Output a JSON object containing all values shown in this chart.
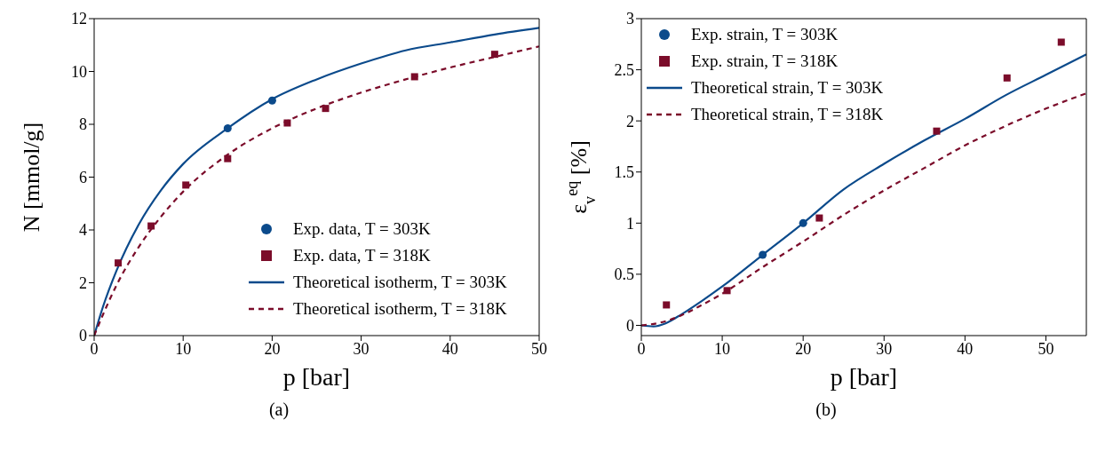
{
  "chart_data": [
    {
      "type": "scatter",
      "xlabel": "p [bar]",
      "ylabel": "N [mmol/g]",
      "xlim": [
        0,
        50
      ],
      "ylim": [
        0,
        12
      ],
      "xticks": [
        0,
        10,
        20,
        30,
        40,
        50
      ],
      "yticks": [
        0,
        2,
        4,
        6,
        8,
        10,
        12
      ],
      "legend": "bottom right",
      "annotations": [
        "(a)"
      ],
      "series": [
        {
          "name": "Exp. data, T = 303K",
          "type": "scatter",
          "marker": "circle",
          "color": "#0b4a8b",
          "x": [
            15,
            20
          ],
          "values": [
            7.85,
            8.9
          ]
        },
        {
          "name": "Exp. data, T = 318K",
          "type": "scatter",
          "marker": "square",
          "color": "#7b0c2a",
          "x": [
            2.7,
            6.4,
            10.3,
            15,
            21.7,
            26,
            36,
            45
          ],
          "values": [
            2.75,
            4.15,
            5.7,
            6.7,
            8.05,
            8.6,
            9.8,
            10.65
          ]
        },
        {
          "name": "Theoretical isotherm, T = 303K",
          "type": "line",
          "line_style": "solid",
          "color": "#0b4a8b",
          "x": [
            0,
            1,
            2.5,
            5,
            7.5,
            10,
            15,
            20,
            25,
            30,
            35,
            40,
            45,
            50
          ],
          "values": [
            0,
            1.1,
            2.45,
            4.2,
            5.5,
            6.5,
            7.85,
            8.95,
            9.7,
            10.3,
            10.8,
            11.1,
            11.4,
            11.65
          ]
        },
        {
          "name": "Theoretical isotherm, T = 318K",
          "type": "line",
          "line_style": "dashed",
          "color": "#7b0c2a",
          "x": [
            0,
            1,
            2.5,
            5,
            7.5,
            10,
            15,
            20,
            25,
            30,
            35,
            40,
            45,
            50
          ],
          "values": [
            0,
            0.8,
            1.9,
            3.35,
            4.5,
            5.45,
            6.85,
            7.85,
            8.6,
            9.2,
            9.7,
            10.15,
            10.55,
            10.95
          ]
        }
      ]
    },
    {
      "type": "scatter",
      "xlabel": "p [bar]",
      "ylabel": "ε$_{v}$$^{eq}$ [%]",
      "xlim": [
        0,
        55
      ],
      "ylim": [
        -0.1,
        3
      ],
      "xticks": [
        0,
        10,
        20,
        30,
        40,
        50
      ],
      "yticks": [
        0,
        0.5,
        1,
        1.5,
        2,
        2.5,
        3
      ],
      "legend": "top left",
      "annotations": [
        "(b)"
      ],
      "series": [
        {
          "name": "Exp. strain, T = 303K",
          "type": "scatter",
          "marker": "circle",
          "color": "#0b4a8b",
          "x": [
            15,
            20
          ],
          "values": [
            0.69,
            1.0
          ]
        },
        {
          "name": "Exp. strain, T = 318K",
          "type": "scatter",
          "marker": "square",
          "color": "#7b0c2a",
          "x": [
            3.1,
            10.6,
            22,
            36.5,
            45.2,
            51.9
          ],
          "values": [
            0.2,
            0.34,
            1.05,
            1.9,
            2.42,
            2.77
          ]
        },
        {
          "name": "Theoretical strain, T = 303K",
          "type": "line",
          "line_style": "solid",
          "color": "#0b4a8b",
          "x": [
            0,
            1.5,
            3,
            5,
            7.5,
            10,
            15,
            20,
            25,
            30,
            35,
            40,
            45,
            50,
            55
          ],
          "values": [
            0,
            -0.01,
            0.02,
            0.11,
            0.24,
            0.38,
            0.69,
            1.0,
            1.33,
            1.58,
            1.81,
            2.02,
            2.25,
            2.45,
            2.65
          ]
        },
        {
          "name": "Theoretical strain, T = 318K",
          "type": "line",
          "line_style": "dashed",
          "color": "#7b0c2a",
          "x": [
            0,
            2.5,
            5,
            7.5,
            10,
            15,
            20,
            25,
            30,
            35,
            40,
            45,
            50,
            55
          ],
          "values": [
            0,
            0.03,
            0.1,
            0.2,
            0.31,
            0.57,
            0.82,
            1.08,
            1.32,
            1.54,
            1.76,
            1.95,
            2.12,
            2.27
          ]
        }
      ]
    }
  ]
}
